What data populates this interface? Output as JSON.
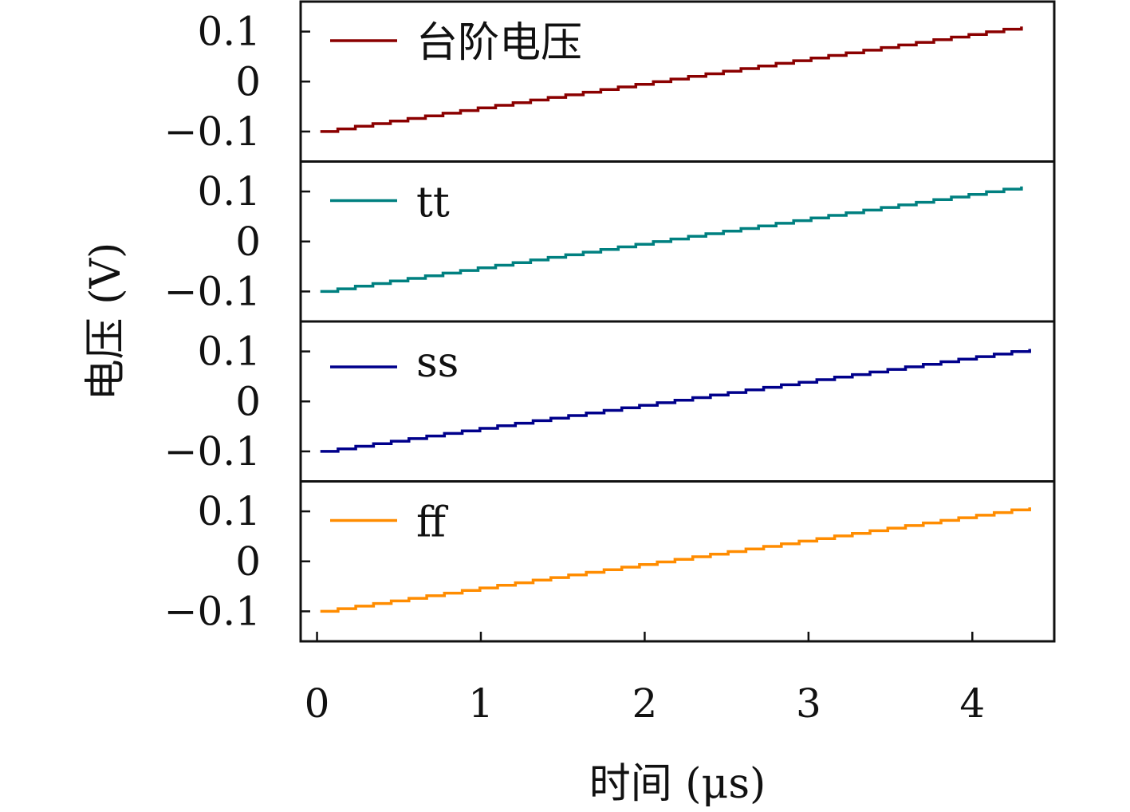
{
  "chart_data": {
    "type": "line",
    "layout": "stacked-panels",
    "xlabel": "时间 (μs)",
    "ylabel": "电压 (V)",
    "xlim": [
      -0.1,
      4.5
    ],
    "x_ticks": [
      0,
      1,
      2,
      3,
      4
    ],
    "x_tick_labels": [
      "0",
      "1",
      "2",
      "3",
      "4"
    ],
    "ylim": [
      -0.16,
      0.16
    ],
    "y_ticks": [
      0.1,
      0,
      -0.1
    ],
    "y_tick_labels": [
      "0.1",
      "0",
      "−0.1"
    ],
    "steps": 40,
    "grid": false,
    "legend_position": "top-left",
    "panels": [
      {
        "name": "台阶电压",
        "color": "#8b0000",
        "x_start": 0.02,
        "x_end": 4.3,
        "y_start": -0.1,
        "y_end": 0.11
      },
      {
        "name": "tt",
        "color": "#008080",
        "x_start": 0.02,
        "x_end": 4.3,
        "y_start": -0.1,
        "y_end": 0.11
      },
      {
        "name": "ss",
        "color": "#00008b",
        "x_start": 0.02,
        "x_end": 4.35,
        "y_start": -0.1,
        "y_end": 0.105
      },
      {
        "name": "ff",
        "color": "#ff8c00",
        "x_start": 0.02,
        "x_end": 4.35,
        "y_start": -0.1,
        "y_end": 0.108
      }
    ]
  }
}
